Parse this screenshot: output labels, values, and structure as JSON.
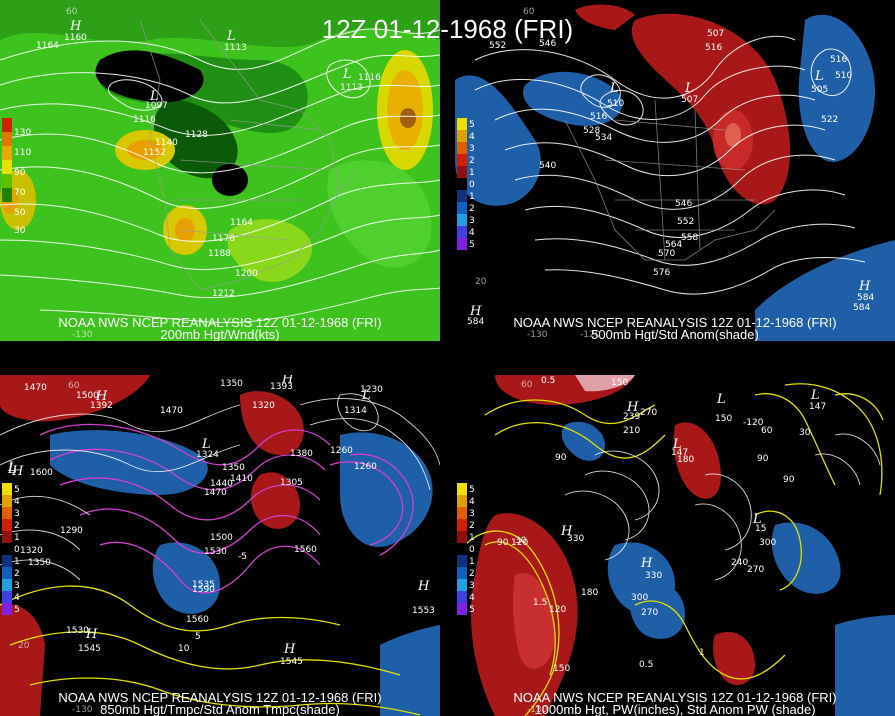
{
  "title": "12Z 01-12-1968 (FRI)",
  "panels": [
    {
      "caption_line1": "NOAA NWS NCEP REANALYSIS 12Z 01-12-1968 (FRI)",
      "caption_line2": "200mb Hgt/Wnd(kts)",
      "legend": [
        "130",
        "110",
        "90",
        "70",
        "50",
        "30"
      ],
      "legend_colors": [
        "#cc2200",
        "#e07800",
        "#e8a800",
        "#e8e000",
        "#60c000",
        "#208000"
      ],
      "contour_labels": [
        "1164",
        "1116",
        "1116",
        "1128",
        "1140",
        "1152",
        "1164",
        "1176",
        "1188",
        "1200",
        "1212"
      ],
      "lon_labels": [
        "-130"
      ],
      "lat_labels": [
        "60"
      ]
    },
    {
      "caption_line1": "NOAA NWS NCEP REANALYSIS 12Z 01-12-1968 (FRI)",
      "caption_line2": "500mb Hgt/Std Anom(shade)",
      "legend": [
        "5",
        "4",
        "3",
        "2",
        "1",
        "0",
        "1",
        "2",
        "3",
        "4",
        "5"
      ],
      "legend_colors": [
        "#f0e000",
        "#e0a000",
        "#e06000",
        "#d02000",
        "#901010",
        "#000000",
        "#103080",
        "#1060c0",
        "#20a0e0",
        "#4040e0",
        "#8020e0"
      ],
      "contour_labels": [
        "552",
        "546",
        "516",
        "516",
        "510",
        "522",
        "510",
        "516",
        "528",
        "534",
        "540",
        "546",
        "552",
        "558",
        "564",
        "570",
        "576",
        "584"
      ],
      "lon_labels": [
        "-130",
        "-120"
      ],
      "lat_labels": [
        "60",
        "20"
      ]
    },
    {
      "caption_line1": "NOAA NWS NCEP REANALYSIS 12Z 01-12-1968 (FRI)",
      "caption_line2": "850mb Hgt/Tmpc/Std Anom Tmpc(shade)",
      "legend": [
        "5",
        "4",
        "3",
        "2",
        "1",
        "0",
        "1",
        "2",
        "3",
        "4",
        "5"
      ],
      "legend_colors": [
        "#f0e000",
        "#e0a000",
        "#e06000",
        "#d02000",
        "#901010",
        "#000000",
        "#103080",
        "#1060c0",
        "#20a0e0",
        "#4040e0",
        "#8020e0"
      ],
      "contour_labels": [
        "1470",
        "1500",
        "1350",
        "1470",
        "1350",
        "1320",
        "1230",
        "1260",
        "1260",
        "1380",
        "1410",
        "1470",
        "1440",
        "1500",
        "1530",
        "1560",
        "1590",
        "1560",
        "1530",
        "1290",
        "1320",
        "1350"
      ],
      "lon_labels": [
        "-130"
      ],
      "lat_labels": [
        "60",
        "20"
      ],
      "temp_labels": [
        "5",
        "10",
        "-5"
      ]
    },
    {
      "caption_line1": "NOAA NWS NCEP REANALYSIS 12Z 01-12-1968 (FRI)",
      "caption_line2": "1000mb Hgt, PW(inches), Std Anom PW (shade)",
      "legend": [
        "5",
        "4",
        "3",
        "2",
        "1",
        "0",
        "1",
        "2",
        "3",
        "4",
        "5"
      ],
      "legend_colors": [
        "#f0e000",
        "#e0a000",
        "#e06000",
        "#d02000",
        "#901010",
        "#000000",
        "#103080",
        "#1060c0",
        "#20a0e0",
        "#4040e0",
        "#8020e0"
      ],
      "contour_labels": [
        "150",
        "0.5",
        "270",
        "210",
        "150",
        "90",
        "180",
        "60",
        "90",
        "90",
        "300",
        "240",
        "270",
        "30",
        "300",
        "270",
        "120",
        "180",
        "150",
        "30",
        "90",
        "120"
      ],
      "pw_labels": [
        "0.5",
        "1.5",
        "0.5",
        "1"
      ],
      "lon_labels": [
        "-130"
      ],
      "lat_labels": [
        "60"
      ]
    }
  ],
  "center_labels": {
    "p1": [
      "H",
      "L",
      "L",
      "L"
    ],
    "p2": [
      "L",
      "L",
      "L",
      "H",
      "H"
    ],
    "p3": [
      "H",
      "H",
      "H",
      "L",
      "L",
      "L",
      "H",
      "H",
      "H",
      "L"
    ],
    "p4": [
      "H",
      "L",
      "L",
      "H",
      "L",
      "L",
      "H"
    ]
  },
  "center_values": {
    "p1": [
      "1160",
      "1113",
      "1097",
      "1113"
    ],
    "p2": [
      "507",
      "507",
      "505",
      "584",
      "584"
    ],
    "p3": [
      "1392",
      "1393",
      "1600",
      "1324",
      "1314",
      "1305",
      "1553",
      "1545",
      "1545",
      "1535"
    ],
    "p4": [
      "239",
      "147",
      "-120",
      "330",
      "147",
      "15",
      "330"
    ]
  }
}
